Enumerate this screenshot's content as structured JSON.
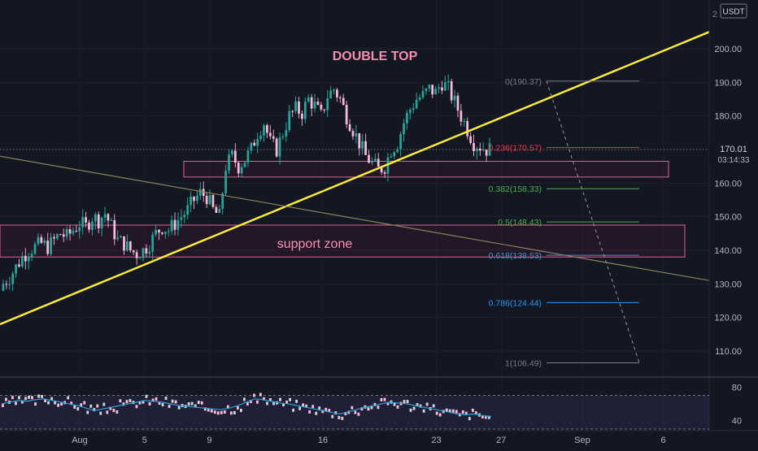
{
  "header": {
    "currency": "USDT",
    "corner_glyph": "2"
  },
  "annotations": {
    "pattern_label": "DOUBLE TOP",
    "zone_label": "support zone"
  },
  "price_axis": {
    "ticks": [
      "200.00",
      "190.00",
      "180.00",
      "170.00",
      "160.00",
      "150.00",
      "140.00",
      "130.00",
      "120.00",
      "110.00"
    ],
    "current_price": "170.01",
    "countdown": "03:14:33"
  },
  "time_axis": {
    "ticks": [
      "Aug",
      "5",
      "9",
      "16",
      "23",
      "27",
      "Sep",
      "6"
    ]
  },
  "fibonacci": {
    "levels": [
      {
        "label": "0(190.37)",
        "ratio": 0,
        "price": 190.37,
        "color": "#787b86"
      },
      {
        "label": "0.236(170.57)",
        "ratio": 0.236,
        "price": 170.57,
        "color": "#f23645"
      },
      {
        "label": "0.382(158.33)",
        "ratio": 0.382,
        "price": 158.33,
        "color": "#4caf50"
      },
      {
        "label": "0.5(148.43)",
        "ratio": 0.5,
        "price": 148.43,
        "color": "#4caf50"
      },
      {
        "label": "0.618(138.53)",
        "ratio": 0.618,
        "price": 138.53,
        "color": "#2a9fbf"
      },
      {
        "label": "0.786(124.44)",
        "ratio": 0.786,
        "price": 124.44,
        "color": "#2196f3"
      },
      {
        "label": "1(106.49)",
        "ratio": 1,
        "price": 106.49,
        "color": "#787b86"
      }
    ]
  },
  "oscillator": {
    "ticks": [
      "80",
      "40"
    ],
    "band": [
      30,
      70
    ]
  },
  "chart_data": {
    "type": "candlestick",
    "x_range": [
      "2023-07-26",
      "2023-09-08"
    ],
    "ylim": [
      100,
      210
    ],
    "current_price": 170.01,
    "closes": [
      130,
      132,
      135,
      138,
      140,
      141,
      142,
      141,
      143,
      145,
      144,
      146,
      148,
      147,
      150,
      149,
      151,
      147,
      143,
      142,
      140,
      139,
      140,
      142,
      145,
      147,
      146,
      148,
      150,
      152,
      155,
      157,
      156,
      152,
      150,
      165,
      168,
      165,
      167,
      170,
      175,
      178,
      172,
      170,
      175,
      180,
      182,
      181,
      185,
      183,
      180,
      186,
      188,
      185,
      180,
      176,
      172,
      168,
      166,
      164,
      165,
      170,
      172,
      178,
      182,
      185,
      186,
      188,
      187,
      190,
      188,
      184,
      180,
      176,
      172,
      171,
      170
    ],
    "support_zones": [
      {
        "label": "support zone",
        "y1": 138,
        "y2": 147.5
      },
      {
        "label": "",
        "y1": 161.8,
        "y2": 166.5
      }
    ],
    "trendlines": [
      {
        "name": "rising",
        "color": "#ffeb3b",
        "points": [
          [
            "2023-07-26",
            118
          ],
          [
            "2023-09-08",
            205
          ]
        ]
      },
      {
        "name": "falling",
        "color": "#8a8358",
        "points": [
          [
            "2023-07-26",
            168
          ],
          [
            "2023-09-08",
            131
          ]
        ]
      }
    ],
    "oscillator_series": [
      60,
      62,
      64,
      63,
      65,
      66,
      64,
      62,
      60,
      58,
      55,
      52,
      54,
      56,
      58,
      60,
      62,
      64,
      63,
      62,
      60,
      58,
      57,
      56,
      55,
      54,
      53,
      55,
      58,
      62,
      66,
      65,
      63,
      61,
      60,
      58,
      56,
      54,
      52,
      50,
      48,
      50,
      53,
      56,
      58,
      60,
      62,
      61,
      60,
      58,
      56,
      54,
      52,
      50,
      48,
      47,
      48,
      46,
      45
    ],
    "oscillator_ylim": [
      30,
      90
    ]
  }
}
